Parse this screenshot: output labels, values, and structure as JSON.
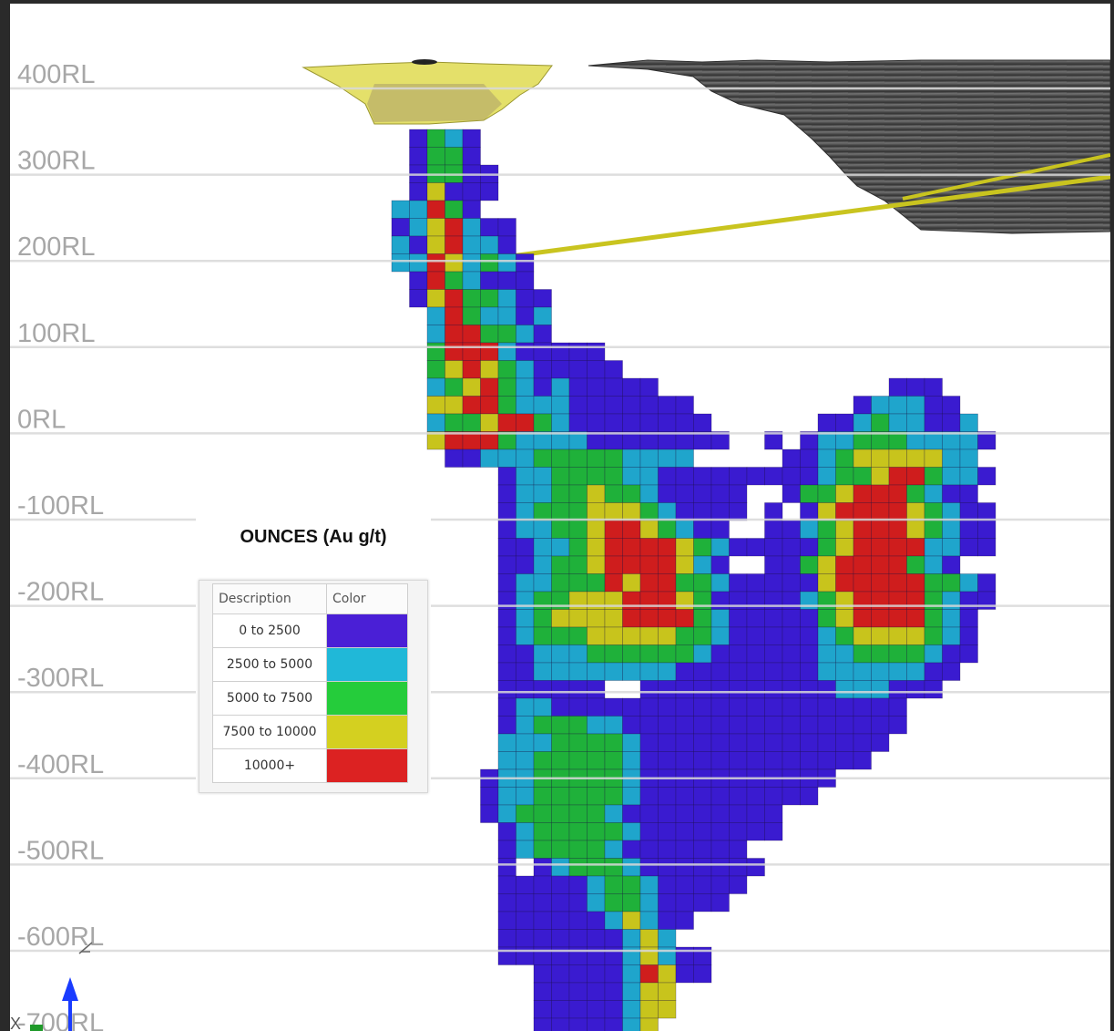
{
  "elevation_labels": [
    "400RL",
    "300RL",
    "200RL",
    "100RL",
    "0RL",
    "-100RL",
    "-200RL",
    "-300RL",
    "-400RL",
    "-500RL",
    "-600RL",
    "-700RL"
  ],
  "legend": {
    "title": "OUNCES (Au g/t)",
    "headers": {
      "description": "Description",
      "color": "Color"
    },
    "rows": [
      {
        "label": "0 to 2500",
        "color": "#4a1fd6"
      },
      {
        "label": "2500 to 5000",
        "color": "#20b8d8"
      },
      {
        "label": "5000 to 7500",
        "color": "#25cc3b"
      },
      {
        "label": "7500 to 10000",
        "color": "#d4d020"
      },
      {
        "label": "10000+",
        "color": "#dc2222"
      }
    ]
  },
  "colors": {
    "grade_0": "#3a1bd0",
    "grade_1": "#1fa5cc",
    "grade_2": "#1fb13a",
    "grade_3": "#c8c41c",
    "grade_4": "#cf1d1d",
    "pit": "#e4e06a",
    "decline": "#c9c41f",
    "topography": "#4a4a4a"
  },
  "axis_triad": {
    "z": "Z",
    "x": "X"
  }
}
